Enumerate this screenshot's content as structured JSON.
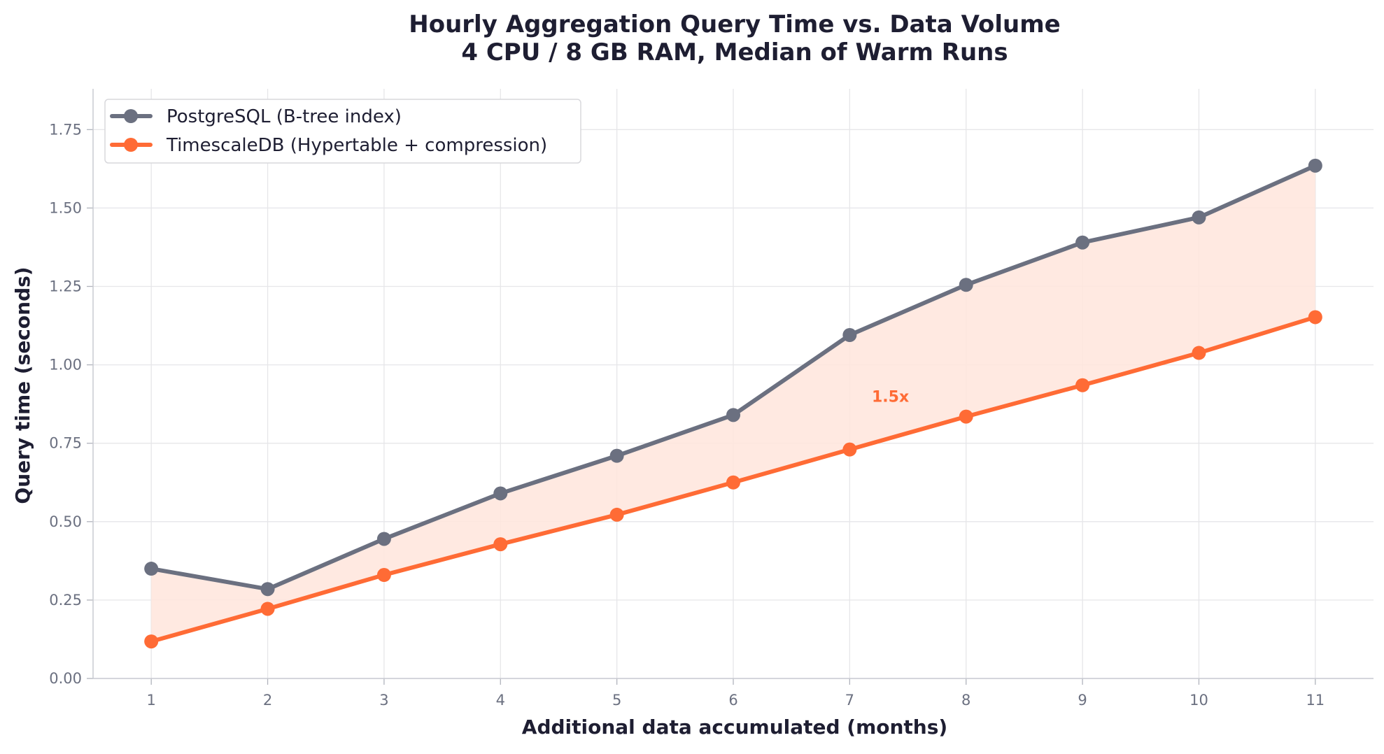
{
  "chart_data": {
    "type": "line",
    "title_line1": "Hourly Aggregation Query Time vs. Data Volume",
    "title_line2": "4 CPU / 8 GB RAM, Median of Warm Runs",
    "xlabel": "Additional data accumulated (months)",
    "ylabel": "Query time (seconds)",
    "x": [
      1,
      2,
      3,
      4,
      5,
      6,
      7,
      8,
      9,
      10,
      11
    ],
    "xlim": [
      0.5,
      11.5
    ],
    "ylim": [
      0,
      1.88
    ],
    "yticks": [
      0.0,
      0.25,
      0.5,
      0.75,
      1.0,
      1.25,
      1.5,
      1.75
    ],
    "ytick_labels": [
      "0.00",
      "0.25",
      "0.50",
      "0.75",
      "1.00",
      "1.25",
      "1.50",
      "1.75"
    ],
    "xtick_labels": [
      "1",
      "2",
      "3",
      "4",
      "5",
      "6",
      "7",
      "8",
      "9",
      "10",
      "11"
    ],
    "grid": true,
    "legend_position": "top-left",
    "series": [
      {
        "name": "PostgreSQL (B-tree index)",
        "color": "#6b7080",
        "values": [
          0.35,
          0.285,
          0.445,
          0.59,
          0.71,
          0.84,
          1.095,
          1.255,
          1.39,
          1.47,
          1.635
        ]
      },
      {
        "name": "TimescaleDB (Hypertable + compression)",
        "color": "#ff6b35",
        "values": [
          0.118,
          0.222,
          0.33,
          0.428,
          0.522,
          0.625,
          0.73,
          0.835,
          0.935,
          1.038,
          1.152
        ]
      }
    ],
    "fill_between": {
      "color": "#ffe5dc"
    },
    "annotations": [
      {
        "text": "1.5x",
        "x": 7.35,
        "y": 0.9,
        "color": "#ff6b35"
      }
    ]
  }
}
